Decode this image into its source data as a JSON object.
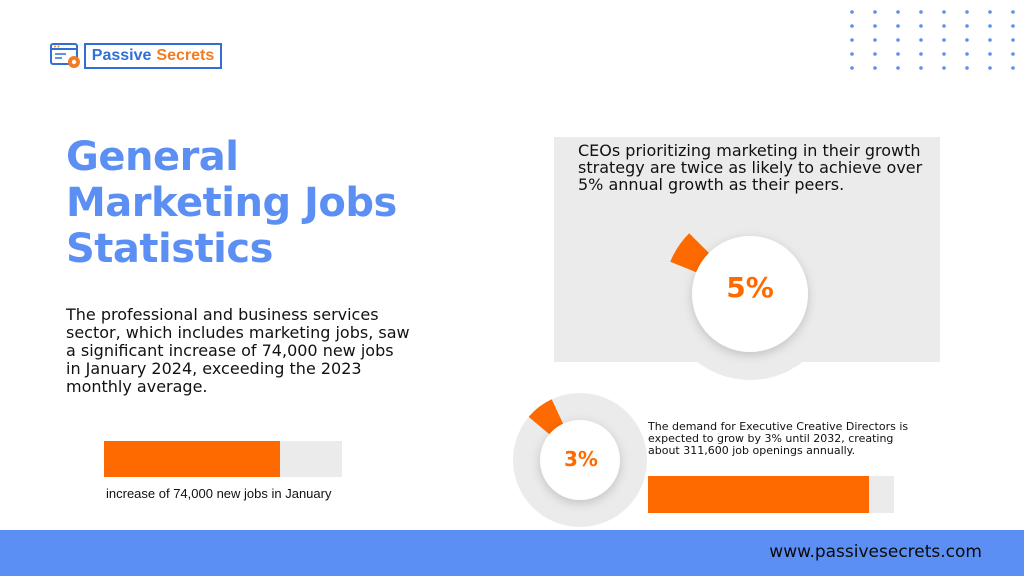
{
  "brand": {
    "word1": "Passive",
    "word2": "Secrets",
    "icon": "browser-gear-icon",
    "colors": {
      "blue": "#2f6fd6",
      "orange": "#f47c20"
    }
  },
  "heading": "General Marketing Jobs Statistics",
  "intro": "The professional and business services sector, which includes marketing jobs, saw a significant increase of 74,000 new jobs in January 2024, exceeding the 2023 monthly average.",
  "stat_jobs": {
    "caption": "increase of 74,000 new jobs in January",
    "fill_fraction": 0.74
  },
  "stat_ceo": {
    "text": "CEOs prioritizing marketing in their growth strategy are twice as likely to achieve over 5% annual growth as their peers.",
    "value_label": "5%",
    "value": 5
  },
  "stat_ecd": {
    "text": "The demand for Executive Creative Directors is expected to grow by 3% until 2032, creating about 311,600 job openings annually.",
    "value_label": "3%",
    "value": 3,
    "fill_fraction": 0.9
  },
  "footer": {
    "url": "www.passivesecrets.com"
  },
  "colors": {
    "heading": "#5b8ff3",
    "accent": "#ff6a00",
    "track": "#ebebeb",
    "footer": "#5b8ff3",
    "dots": "#5b8ff3"
  }
}
